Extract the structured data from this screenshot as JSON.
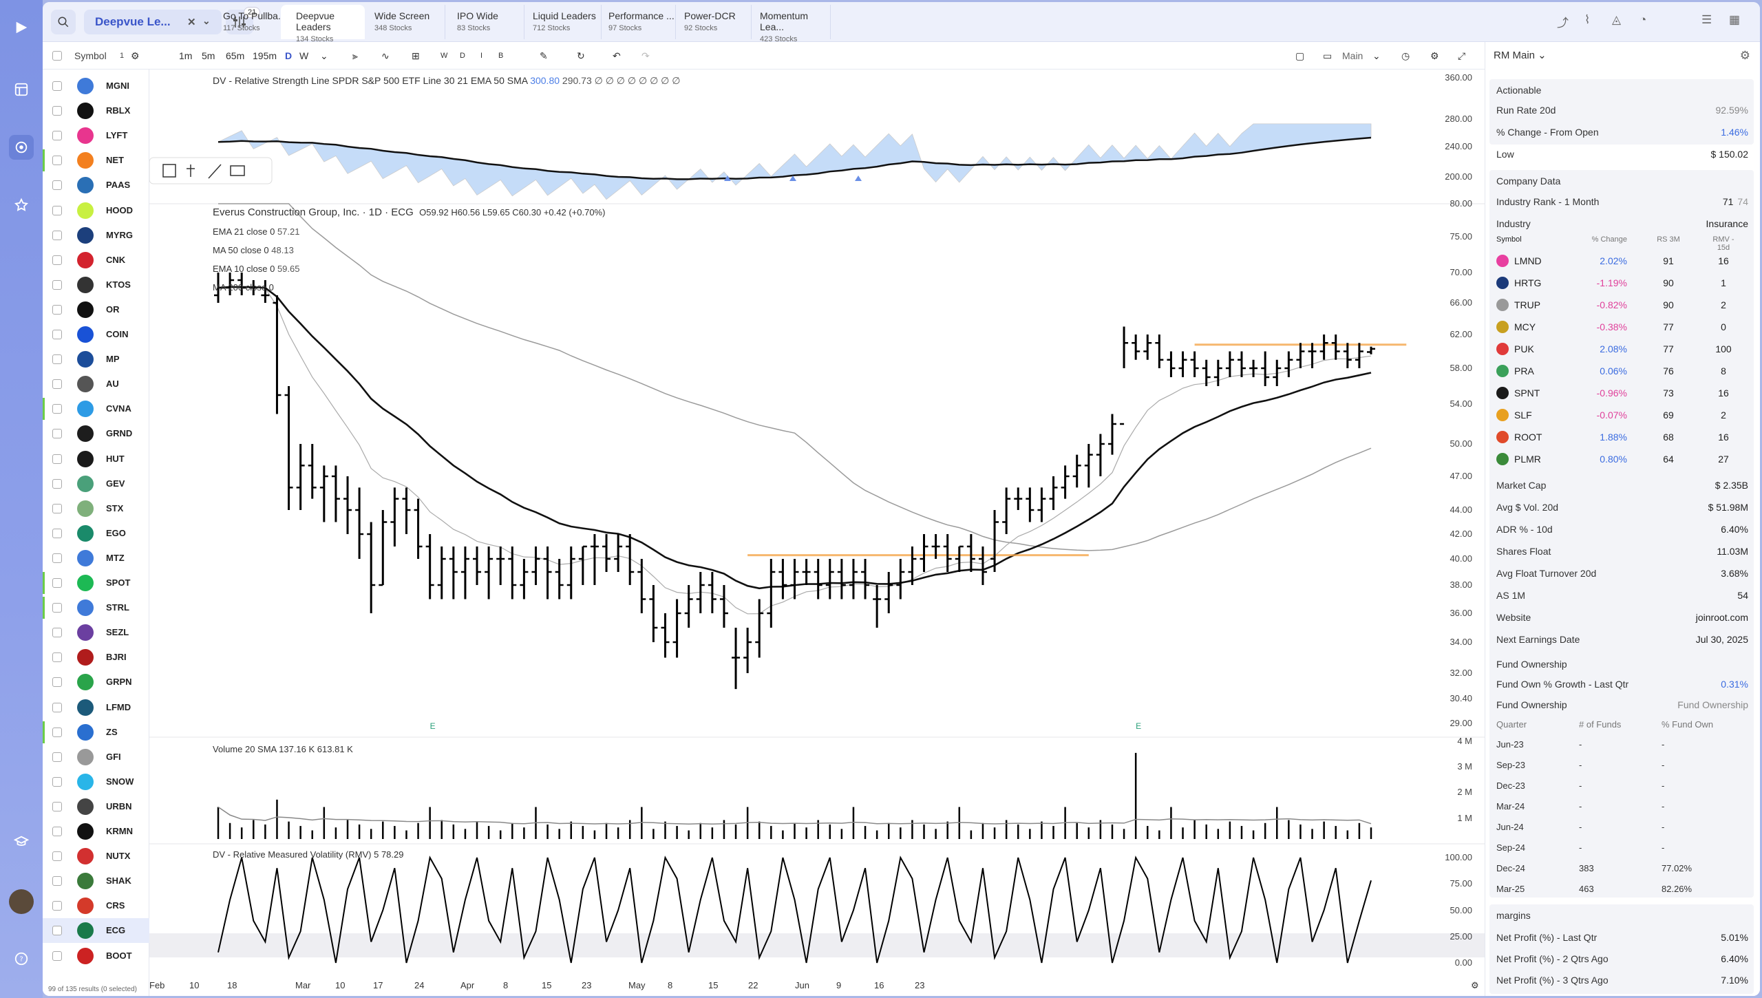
{
  "topbar": {
    "screen_select": "Deepvue Le...",
    "filter_badge": "21",
    "tabs": [
      {
        "title": "Go To Pullba...",
        "sub": "117 Stocks"
      },
      {
        "title": "Deepvue Leaders",
        "sub": "134 Stocks"
      },
      {
        "title": "Wide Screen",
        "sub": "348 Stocks"
      },
      {
        "title": "IPO Wide",
        "sub": "83 Stocks"
      },
      {
        "title": "Liquid Leaders",
        "sub": "712 Stocks"
      },
      {
        "title": "Performance ...",
        "sub": "97 Stocks"
      },
      {
        "title": "Power-DCR",
        "sub": "92 Stocks"
      },
      {
        "title": "Momentum Lea...",
        "sub": "423 Stocks"
      }
    ]
  },
  "toolbar": {
    "symbol_label": "Symbol",
    "symbol_count": "1",
    "timeframes": [
      "1m",
      "5m",
      "65m",
      "195m",
      "D",
      "W"
    ],
    "period_buttons": [
      "W",
      "D",
      "I",
      "B"
    ],
    "layout_label": "Main"
  },
  "watchlist": {
    "symbols": [
      "MGNI",
      "RBLX",
      "LYFT",
      "NET",
      "PAAS",
      "HOOD",
      "MYRG",
      "CNK",
      "KTOS",
      "OR",
      "COIN",
      "MP",
      "AU",
      "CVNA",
      "GRND",
      "HUT",
      "GEV",
      "STX",
      "EGO",
      "MTZ",
      "SPOT",
      "STRL",
      "SEZL",
      "BJRI",
      "GRPN",
      "LFMD",
      "ZS",
      "GFI",
      "SNOW",
      "URBN",
      "KRMN",
      "NUTX",
      "SHAK",
      "CRS",
      "ECG",
      "BOOT"
    ],
    "colors": [
      "#3f7ad9",
      "#111",
      "#e8358e",
      "#f3801f",
      "#2a6fb5",
      "#c8f041",
      "#1c3f7c",
      "#d3232e",
      "#333",
      "#111",
      "#1952d6",
      "#1c4d9a",
      "#555",
      "#2d9be5",
      "#1d1d1d",
      "#1a1a1a",
      "#4aa07a",
      "#7fb07b",
      "#1a8a6a",
      "#3f7ad9",
      "#1db954",
      "#3f7ad9",
      "#6b3fa0",
      "#b01c1c",
      "#2aa44a",
      "#1c5a7a",
      "#2a6fd0",
      "#999",
      "#29b5e8",
      "#444",
      "#111",
      "#d23030",
      "#3a7a3a",
      "#d43a2a",
      "#1a7a4a",
      "#c22"
    ],
    "footer": "99 of 135 results (0 selected)"
  },
  "rs_line": {
    "title": "DV - Relative Strength Line SPDR S&P 500 ETF Line 30 21 EMA 50 SMA",
    "v1": "300.80",
    "v2": "290.73",
    "dots": "∅ ∅ ∅ ∅ ∅ ∅ ∅ ∅",
    "ticks": [
      "360.00",
      "280.00",
      "240.00",
      "200.00"
    ]
  },
  "price": {
    "title": "Everus Construction Group, Inc. · 1D · ECG",
    "ohlc": "O59.92 H60.56 L59.65 C60.30 +0.42 (+0.70%)",
    "indicators": [
      {
        "name": "EMA 21 close 0",
        "value": "57.21"
      },
      {
        "name": "MA 50 close 0",
        "value": "48.13"
      },
      {
        "name": "EMA 10 close 0",
        "value": "59.65"
      },
      {
        "name": "MA 200 close 0",
        "value": ""
      }
    ],
    "ticks": [
      "80.00",
      "75.00",
      "70.00",
      "66.00",
      "62.00",
      "58.00",
      "54.00",
      "50.00",
      "47.00",
      "44.00",
      "42.00",
      "40.00",
      "38.00",
      "36.00",
      "34.00",
      "32.00",
      "30.40",
      "29.00"
    ],
    "earnings_marker": "E"
  },
  "volume": {
    "title": "Volume 20 SMA",
    "v1": "137.16 K",
    "v2": "613.81 K",
    "ticks": [
      "4 M",
      "3 M",
      "2 M",
      "1 M"
    ]
  },
  "rmv": {
    "title": "DV - Relative Measured Volatility (RMV) 5",
    "value": "78.29",
    "ticks": [
      "100.00",
      "75.00",
      "50.00",
      "25.00",
      "0.00"
    ]
  },
  "xaxis": [
    "Feb",
    "10",
    "18",
    "Mar",
    "10",
    "17",
    "24",
    "Apr",
    "8",
    "15",
    "23",
    "May",
    "8",
    "15",
    "22",
    "Jun",
    "9",
    "16",
    "23"
  ],
  "chart_data": {
    "type": "ohlc",
    "symbol": "ECG",
    "bars": [
      [
        67,
        70,
        66,
        68
      ],
      [
        68,
        70,
        67,
        69
      ],
      [
        69,
        70,
        67,
        68
      ],
      [
        68,
        69,
        67,
        68
      ],
      [
        67,
        69,
        66,
        67
      ],
      [
        66,
        67,
        53,
        55
      ],
      [
        55,
        56,
        44,
        46
      ],
      [
        46,
        50,
        44,
        48
      ],
      [
        48,
        50,
        45,
        46
      ],
      [
        46,
        48,
        43,
        47
      ],
      [
        47,
        48,
        43,
        45
      ],
      [
        45,
        47,
        42,
        44
      ],
      [
        44,
        46,
        40,
        42
      ],
      [
        42,
        43,
        36,
        38
      ],
      [
        38,
        44,
        38,
        43
      ],
      [
        43,
        46,
        41,
        45
      ],
      [
        45,
        46,
        42,
        44
      ],
      [
        44,
        45,
        40,
        41
      ],
      [
        41,
        42,
        37,
        38
      ],
      [
        38,
        41,
        37,
        40
      ],
      [
        40,
        41,
        37,
        39
      ],
      [
        39,
        41,
        37,
        40
      ],
      [
        40,
        41,
        38,
        39
      ],
      [
        39,
        41,
        37,
        40
      ],
      [
        40,
        41,
        38,
        40
      ],
      [
        40,
        41,
        37,
        38
      ],
      [
        38,
        40,
        37,
        39
      ],
      [
        39,
        41,
        38,
        40
      ],
      [
        40,
        41,
        37,
        39
      ],
      [
        39,
        40,
        37,
        38
      ],
      [
        38,
        41,
        37,
        40
      ],
      [
        40,
        41,
        38,
        41
      ],
      [
        41,
        42,
        38,
        41
      ],
      [
        41,
        42,
        39,
        40
      ],
      [
        40,
        42,
        39,
        41
      ],
      [
        41,
        42,
        38,
        39
      ],
      [
        39,
        40,
        36,
        37
      ],
      [
        37,
        38,
        34,
        35
      ],
      [
        35,
        36,
        33,
        34
      ],
      [
        34,
        37,
        33,
        36
      ],
      [
        36,
        38,
        35,
        37
      ],
      [
        37,
        39,
        36,
        38
      ],
      [
        38,
        39,
        36,
        37
      ],
      [
        37,
        38,
        35,
        36
      ],
      [
        33,
        35,
        31,
        33
      ],
      [
        33,
        35,
        32,
        34
      ],
      [
        34,
        37,
        33,
        36
      ],
      [
        36,
        40,
        35,
        39
      ],
      [
        39,
        40,
        37,
        38
      ],
      [
        38,
        40,
        37,
        39
      ],
      [
        39,
        40,
        38,
        39
      ],
      [
        39,
        40,
        37,
        38
      ],
      [
        38,
        40,
        37,
        39
      ],
      [
        39,
        40,
        37,
        38
      ],
      [
        38,
        40,
        37,
        39
      ],
      [
        39,
        40,
        37,
        38
      ],
      [
        37,
        38,
        35,
        37
      ],
      [
        37,
        39,
        36,
        38
      ],
      [
        38,
        40,
        37,
        39
      ],
      [
        39,
        41,
        38,
        40
      ],
      [
        40,
        42,
        39,
        41
      ],
      [
        41,
        42,
        40,
        41
      ],
      [
        41,
        42,
        39,
        40
      ],
      [
        40,
        41,
        39,
        41
      ],
      [
        41,
        42,
        39,
        40
      ],
      [
        40,
        41,
        38,
        39
      ],
      [
        40,
        44,
        39,
        43
      ],
      [
        43,
        46,
        42,
        45
      ],
      [
        45,
        46,
        44,
        45
      ],
      [
        45,
        46,
        43,
        44
      ],
      [
        44,
        46,
        43,
        45
      ],
      [
        45,
        47,
        44,
        46
      ],
      [
        46,
        48,
        45,
        47
      ],
      [
        47,
        49,
        46,
        48
      ],
      [
        48,
        50,
        46,
        49
      ],
      [
        49,
        51,
        47,
        50
      ],
      [
        50,
        53,
        49,
        52
      ],
      [
        52,
        63,
        58,
        61
      ],
      [
        61,
        62,
        59,
        60
      ],
      [
        60,
        62,
        59,
        61
      ],
      [
        61,
        62,
        58,
        59
      ],
      [
        59,
        60,
        57,
        58
      ],
      [
        58,
        60,
        57,
        59
      ],
      [
        59,
        60,
        57,
        58
      ],
      [
        58,
        59,
        56,
        57
      ],
      [
        57,
        59,
        56,
        58
      ],
      [
        58,
        60,
        57,
        59
      ],
      [
        59,
        60,
        57,
        58
      ],
      [
        58,
        59,
        57,
        58
      ],
      [
        58,
        60,
        56,
        57
      ],
      [
        57,
        59,
        56,
        58
      ],
      [
        58,
        60,
        57,
        59
      ],
      [
        59,
        61,
        58,
        60
      ],
      [
        60,
        61,
        58,
        60
      ],
      [
        60,
        62,
        59,
        61
      ],
      [
        61,
        62,
        59,
        60
      ],
      [
        60,
        61,
        58,
        59
      ],
      [
        59,
        61,
        58,
        60
      ],
      [
        59.92,
        60.56,
        59.65,
        60.3
      ]
    ],
    "resistance_levels": [
      40.3,
      60.8
    ],
    "rs_line_current": 300.8,
    "rs_ema": 290.73,
    "ema21": 57.21,
    "ma50": 48.13,
    "ema10": 59.65,
    "volume_sma": 137160,
    "volume_last": 613810,
    "rmv_current": 78.29
  },
  "right_panel": {
    "layout_name": "RM Main",
    "actionable": {
      "title": "Actionable",
      "rows": [
        {
          "k": "Run Rate 20d",
          "v": "92.59%",
          "c": "grey"
        },
        {
          "k": "% Change - From Open",
          "v": "1.46%",
          "c": "blue"
        },
        {
          "k": "Low",
          "v": "$ 150.02",
          "c": ""
        }
      ]
    },
    "company": {
      "title": "Company Data",
      "industry_rank_label": "Industry Rank - 1 Month",
      "industry_rank": "71",
      "industry_rank_prev": "74",
      "industry_label": "Industry",
      "industry": "Insurance",
      "col_headers": [
        "Symbol",
        "% Change",
        "RS 3M",
        "RMV - 15d"
      ],
      "industry_rows": [
        {
          "s": "LMND",
          "p": "2.02%",
          "rs": "91",
          "rmv": "16",
          "c": "#e83fa0"
        },
        {
          "s": "HRTG",
          "p": "-1.19%",
          "rs": "90",
          "rmv": "1",
          "c": "#1c3a7a"
        },
        {
          "s": "TRUP",
          "p": "-0.82%",
          "rs": "90",
          "rmv": "2",
          "c": "#999"
        },
        {
          "s": "MCY",
          "p": "-0.38%",
          "rs": "77",
          "rmv": "0",
          "c": "#c8a020"
        },
        {
          "s": "PUK",
          "p": "2.08%",
          "rs": "77",
          "rmv": "100",
          "c": "#e03a3a"
        },
        {
          "s": "PRA",
          "p": "0.06%",
          "rs": "76",
          "rmv": "8",
          "c": "#3aa05a"
        },
        {
          "s": "SPNT",
          "p": "-0.96%",
          "rs": "73",
          "rmv": "16",
          "c": "#1a1a1a"
        },
        {
          "s": "SLF",
          "p": "-0.07%",
          "rs": "69",
          "rmv": "2",
          "c": "#e8a020"
        },
        {
          "s": "ROOT",
          "p": "1.88%",
          "rs": "68",
          "rmv": "16",
          "c": "#e04a2a"
        },
        {
          "s": "PLMR",
          "p": "0.80%",
          "rs": "64",
          "rmv": "27",
          "c": "#3a8a3a"
        }
      ],
      "stats": [
        {
          "k": "Market Cap",
          "v": "$ 2.35B"
        },
        {
          "k": "Avg $ Vol. 20d",
          "v": "$ 51.98M"
        },
        {
          "k": "ADR % - 10d",
          "v": "6.40%"
        },
        {
          "k": "Shares Float",
          "v": "11.03M"
        },
        {
          "k": "Avg Float Turnover 20d",
          "v": "3.68%"
        },
        {
          "k": "AS 1M",
          "v": "54"
        },
        {
          "k": "Website",
          "v": "joinroot.com"
        },
        {
          "k": "Next Earnings Date",
          "v": "Jul 30, 2025"
        }
      ]
    },
    "fund": {
      "title": "Fund Ownership",
      "growth_label": "Fund Own % Growth - Last Qtr",
      "growth": "0.31%",
      "own_label": "Fund Ownership",
      "cols": [
        "Quarter",
        "# of Funds",
        "% Fund Own"
      ],
      "rows": [
        [
          "Jun-23",
          "-",
          "-"
        ],
        [
          "Sep-23",
          "-",
          "-"
        ],
        [
          "Dec-23",
          "-",
          "-"
        ],
        [
          "Mar-24",
          "-",
          "-"
        ],
        [
          "Jun-24",
          "-",
          "-"
        ],
        [
          "Sep-24",
          "-",
          "-"
        ],
        [
          "Dec-24",
          "383",
          "77.02%"
        ],
        [
          "Mar-25",
          "463",
          "82.26%"
        ]
      ]
    },
    "margins": {
      "title": "margins",
      "rows": [
        {
          "k": "Net Profit (%) - Last Qtr",
          "v": "5.01%"
        },
        {
          "k": "Net Profit (%) - 2 Qtrs Ago",
          "v": "6.40%"
        },
        {
          "k": "Net Profit (%) - 3 Qtrs Ago",
          "v": "7.10%"
        }
      ]
    }
  }
}
